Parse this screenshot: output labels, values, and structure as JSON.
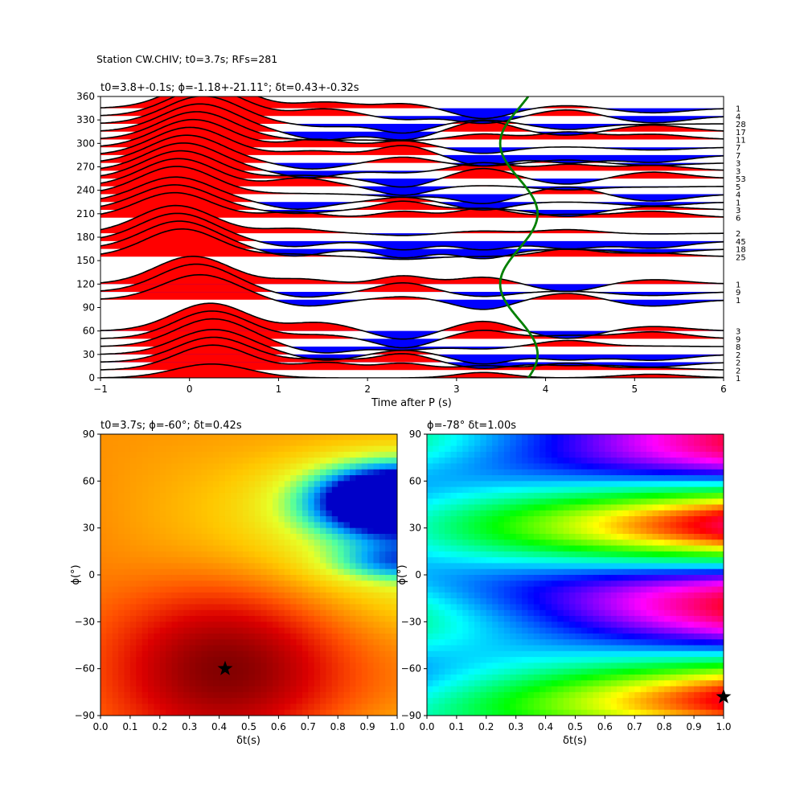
{
  "suptitle": "Station CW.CHIV; t0=3.7s; RFs=281",
  "chart_data": [
    {
      "type": "line",
      "panel": "receiver-functions",
      "title": "t0=3.8+-0.1s; ϕ=-1.18+-21.11°; δt=0.43+-0.32s",
      "xlabel": "Time after P (s)",
      "ylabel": "",
      "xlim": [
        -1,
        6
      ],
      "ylim": [
        0,
        360
      ],
      "xticks": [
        -1,
        0,
        1,
        2,
        3,
        4,
        5,
        6
      ],
      "yticks": [
        0,
        30,
        60,
        90,
        120,
        150,
        180,
        210,
        240,
        270,
        300,
        330,
        360
      ],
      "traces": [
        {
          "baz": 0,
          "count": "1",
          "amp": 0.5
        },
        {
          "baz": 10,
          "count": "2",
          "amp": 0.9
        },
        {
          "baz": 20,
          "count": "2",
          "amp": 0.9
        },
        {
          "baz": 30,
          "count": "2",
          "amp": 0.9
        },
        {
          "baz": 40,
          "count": "8",
          "amp": 1.0
        },
        {
          "baz": 50,
          "count": "9",
          "amp": 1.0
        },
        {
          "baz": 60,
          "count": "3",
          "amp": 1.0
        },
        {
          "baz": 100,
          "count": "1",
          "amp": 0.9
        },
        {
          "baz": 110,
          "count": "9",
          "amp": 1.0
        },
        {
          "baz": 120,
          "count": "1",
          "amp": 1.0
        },
        {
          "baz": 155,
          "count": "25",
          "amp": 1.0
        },
        {
          "baz": 165,
          "count": "18",
          "amp": 1.0
        },
        {
          "baz": 175,
          "count": "45",
          "amp": 1.0
        },
        {
          "baz": 185,
          "count": "2",
          "amp": 1.0
        },
        {
          "baz": 205,
          "count": "6",
          "amp": 0.9
        },
        {
          "baz": 215,
          "count": "3",
          "amp": 0.9
        },
        {
          "baz": 225,
          "count": "1",
          "amp": 0.9
        },
        {
          "baz": 235,
          "count": "4",
          "amp": 1.0
        },
        {
          "baz": 245,
          "count": "5",
          "amp": 1.0
        },
        {
          "baz": 255,
          "count": "53",
          "amp": 1.0
        },
        {
          "baz": 265,
          "count": "3",
          "amp": 1.0
        },
        {
          "baz": 275,
          "count": "3",
          "amp": 1.0
        },
        {
          "baz": 285,
          "count": "7",
          "amp": 1.0
        },
        {
          "baz": 295,
          "count": "7",
          "amp": 1.0
        },
        {
          "baz": 305,
          "count": "11",
          "amp": 1.0
        },
        {
          "baz": 315,
          "count": "17",
          "amp": 1.0
        },
        {
          "baz": 325,
          "count": "28",
          "amp": 1.0
        },
        {
          "baz": 335,
          "count": "4",
          "amp": 1.0
        },
        {
          "baz": 345,
          "count": "1",
          "amp": 1.0
        }
      ],
      "predicted_curve": {
        "t0": 3.7,
        "amplitude": 0.21,
        "phase_deg": 60,
        "color": "#008000"
      },
      "colors": {
        "positive": "#ff0000",
        "negative": "#0000ff",
        "trace": "#000000"
      }
    },
    {
      "type": "heatmap",
      "panel": "grid-search-left",
      "title": "t0=3.7s; ϕ=-60°; δt=0.42s",
      "xlabel": "δt(s)",
      "ylabel": "ϕ(°)",
      "xlim": [
        0.0,
        1.0
      ],
      "ylim": [
        -90,
        90
      ],
      "xticks": [
        "0.0",
        "0.1",
        "0.2",
        "0.3",
        "0.4",
        "0.5",
        "0.6",
        "0.7",
        "0.8",
        "0.9",
        "1.0"
      ],
      "yticks": [
        -90,
        -60,
        -30,
        0,
        30,
        60,
        90
      ],
      "colormap": "hot-to-jet",
      "best": {
        "dt": 0.42,
        "phi": -60
      }
    },
    {
      "type": "heatmap",
      "panel": "grid-search-right",
      "title": "ϕ=-78° δt=1.00s",
      "xlabel": "δt(s)",
      "ylabel": "ϕ(°)",
      "xlim": [
        0.0,
        1.0
      ],
      "ylim": [
        -90,
        90
      ],
      "xticks": [
        "0.0",
        "0.1",
        "0.2",
        "0.3",
        "0.4",
        "0.5",
        "0.6",
        "0.7",
        "0.8",
        "0.9",
        "1.0"
      ],
      "yticks": [
        -90,
        -60,
        -30,
        0,
        30,
        60,
        90
      ],
      "colormap": "hsv",
      "best": {
        "dt": 1.0,
        "phi": -78
      }
    }
  ]
}
